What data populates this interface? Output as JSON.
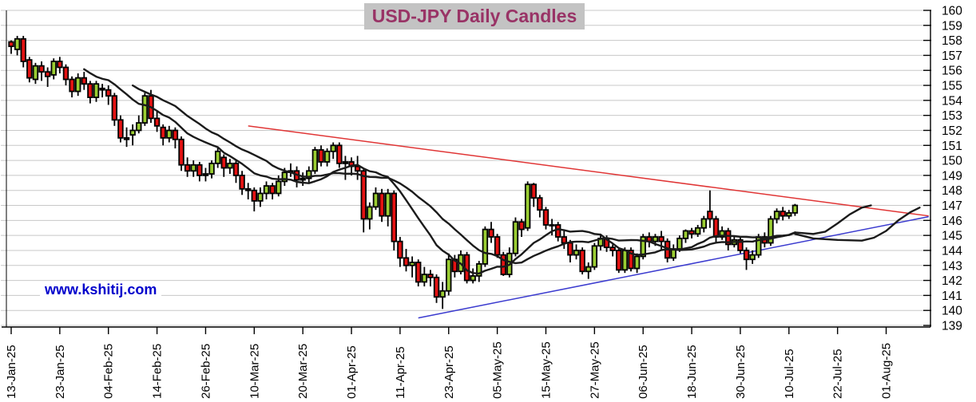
{
  "title": "USD-JPY Daily Candles",
  "watermark": "www.kshitij.com",
  "colors": {
    "title_text": "#993366",
    "title_bg": "#c3c3c3",
    "watermark_text": "#0000cc",
    "candle_up": "#9acd32",
    "candle_down": "#e31212",
    "candle_border": "#000000",
    "grid": "#c8c8c8",
    "axis": "#000000",
    "ma_line": "#1b1b1b",
    "resistance_line": "#e03535",
    "support_line": "#3b3bcf"
  },
  "chart_data": {
    "type": "candlestick",
    "title": "USD-JPY Daily Candles",
    "y_min": 139,
    "y_max": 160,
    "y_step": 1,
    "y_ticks": [
      139,
      140,
      141,
      142,
      143,
      144,
      145,
      146,
      147,
      148,
      149,
      150,
      151,
      152,
      153,
      154,
      155,
      156,
      157,
      158,
      159,
      160
    ],
    "y_axis_side": "right",
    "total_slots": 152,
    "x_ticks": [
      {
        "index": 1,
        "label": "13-Jan-25"
      },
      {
        "index": 9,
        "label": "23-Jan-25"
      },
      {
        "index": 17,
        "label": "04-Feb-25"
      },
      {
        "index": 25,
        "label": "14-Feb-25"
      },
      {
        "index": 33,
        "label": "26-Feb-25"
      },
      {
        "index": 41,
        "label": "10-Mar-25"
      },
      {
        "index": 49,
        "label": "20-Mar-25"
      },
      {
        "index": 57,
        "label": "01-Apr-25"
      },
      {
        "index": 65,
        "label": "11-Apr-25"
      },
      {
        "index": 73,
        "label": "23-Apr-25"
      },
      {
        "index": 81,
        "label": "05-May-25"
      },
      {
        "index": 89,
        "label": "15-May-25"
      },
      {
        "index": 97,
        "label": "27-May-25"
      },
      {
        "index": 105,
        "label": "06-Jun-25"
      },
      {
        "index": 113,
        "label": "18-Jun-25"
      },
      {
        "index": 121,
        "label": "30-Jun-25"
      },
      {
        "index": 129,
        "label": "10-Jul-25"
      },
      {
        "index": 137,
        "label": "22-Jul-25"
      },
      {
        "index": 145,
        "label": "01-Aug-25"
      }
    ],
    "ohlc": [
      [
        157.9,
        158.0,
        157.1,
        157.6
      ],
      [
        157.4,
        158.3,
        157.0,
        158.1
      ],
      [
        158.1,
        158.3,
        156.2,
        156.6
      ],
      [
        156.7,
        156.9,
        155.2,
        155.5
      ],
      [
        155.4,
        156.5,
        155.1,
        156.3
      ],
      [
        156.3,
        156.6,
        155.3,
        155.9
      ],
      [
        155.9,
        156.2,
        154.9,
        155.6
      ],
      [
        155.7,
        156.8,
        155.4,
        156.6
      ],
      [
        156.6,
        156.9,
        155.8,
        156.2
      ],
      [
        156.2,
        156.4,
        155.0,
        155.4
      ],
      [
        155.4,
        155.6,
        154.2,
        154.6
      ],
      [
        154.6,
        155.8,
        154.3,
        155.5
      ],
      [
        155.5,
        155.9,
        154.7,
        155.1
      ],
      [
        155.1,
        155.3,
        153.8,
        154.2
      ],
      [
        154.2,
        155.3,
        153.9,
        155.1
      ],
      [
        154.8,
        155.1,
        154.2,
        154.7
      ],
      [
        154.7,
        155.0,
        153.7,
        154.3
      ],
      [
        154.3,
        154.5,
        152.3,
        152.7
      ],
      [
        152.7,
        153.0,
        151.2,
        151.5
      ],
      [
        151.5,
        152.2,
        150.9,
        151.4
      ],
      [
        151.7,
        152.4,
        151.0,
        152.0
      ],
      [
        152.0,
        153.0,
        151.8,
        152.5
      ],
      [
        152.5,
        154.5,
        152.3,
        154.3
      ],
      [
        154.3,
        154.7,
        152.5,
        152.8
      ],
      [
        152.8,
        153.3,
        151.9,
        152.3
      ],
      [
        152.2,
        152.4,
        151.0,
        151.5
      ],
      [
        151.5,
        152.3,
        151.2,
        152.0
      ],
      [
        152.0,
        152.2,
        150.8,
        151.4
      ],
      [
        151.4,
        151.6,
        149.3,
        149.7
      ],
      [
        149.7,
        150.2,
        148.9,
        149.3
      ],
      [
        149.3,
        150.0,
        148.9,
        149.7
      ],
      [
        149.7,
        149.9,
        148.6,
        149.0
      ],
      [
        149.0,
        149.5,
        148.6,
        149.1
      ],
      [
        149.1,
        150.0,
        148.8,
        149.8
      ],
      [
        149.8,
        150.9,
        149.5,
        150.6
      ],
      [
        150.2,
        150.4,
        148.9,
        149.5
      ],
      [
        149.5,
        150.1,
        149.1,
        149.8
      ],
      [
        149.8,
        150.0,
        148.5,
        149.0
      ],
      [
        149.0,
        149.3,
        147.7,
        148.1
      ],
      [
        148.1,
        148.5,
        147.4,
        148.0
      ],
      [
        148.0,
        148.2,
        146.6,
        147.3
      ],
      [
        147.3,
        148.2,
        146.9,
        147.8
      ],
      [
        147.8,
        148.6,
        147.4,
        148.3
      ],
      [
        148.3,
        148.5,
        147.4,
        147.8
      ],
      [
        147.8,
        149.0,
        147.6,
        148.6
      ],
      [
        148.6,
        149.5,
        148.3,
        149.2
      ],
      [
        149.2,
        149.8,
        148.9,
        149.3
      ],
      [
        149.3,
        149.6,
        148.2,
        148.7
      ],
      [
        148.7,
        149.2,
        148.3,
        148.8
      ],
      [
        148.8,
        149.6,
        148.5,
        149.3
      ],
      [
        149.3,
        150.9,
        149.1,
        150.7
      ],
      [
        150.7,
        151.0,
        149.6,
        149.9
      ],
      [
        149.9,
        150.8,
        149.6,
        150.6
      ],
      [
        150.6,
        151.2,
        150.1,
        151.0
      ],
      [
        151.0,
        151.2,
        149.5,
        149.8
      ],
      [
        149.8,
        150.3,
        148.7,
        149.9
      ],
      [
        149.9,
        150.2,
        149.0,
        149.6
      ],
      [
        149.6,
        150.3,
        148.7,
        149.3
      ],
      [
        149.3,
        149.4,
        145.2,
        146.1
      ],
      [
        146.1,
        147.2,
        145.4,
        146.9
      ],
      [
        146.9,
        148.2,
        146.7,
        147.8
      ],
      [
        147.8,
        148.1,
        145.9,
        146.3
      ],
      [
        146.3,
        148.1,
        145.6,
        147.8
      ],
      [
        147.8,
        148.0,
        144.0,
        144.6
      ],
      [
        144.6,
        144.9,
        142.9,
        143.5
      ],
      [
        143.5,
        144.1,
        142.6,
        143.0
      ],
      [
        143.0,
        143.6,
        142.2,
        143.2
      ],
      [
        143.2,
        143.4,
        141.6,
        141.9
      ],
      [
        141.9,
        142.9,
        141.6,
        142.4
      ],
      [
        142.4,
        142.7,
        141.6,
        142.2
      ],
      [
        142.2,
        142.4,
        140.5,
        140.9
      ],
      [
        140.9,
        141.9,
        140.1,
        141.3
      ],
      [
        141.3,
        143.8,
        141.0,
        143.4
      ],
      [
        143.4,
        143.7,
        142.2,
        142.6
      ],
      [
        142.6,
        144.0,
        142.4,
        143.7
      ],
      [
        143.7,
        143.9,
        141.8,
        142.0
      ],
      [
        142.0,
        142.8,
        141.8,
        142.3
      ],
      [
        142.3,
        143.3,
        141.9,
        143.1
      ],
      [
        143.1,
        145.6,
        142.9,
        145.4
      ],
      [
        145.4,
        145.9,
        144.5,
        144.9
      ],
      [
        144.9,
        145.1,
        143.5,
        143.7
      ],
      [
        143.7,
        143.9,
        142.3,
        142.4
      ],
      [
        142.4,
        144.2,
        142.2,
        143.8
      ],
      [
        143.8,
        146.2,
        143.6,
        145.9
      ],
      [
        145.9,
        146.1,
        144.9,
        145.4
      ],
      [
        145.5,
        148.6,
        145.3,
        148.4
      ],
      [
        148.4,
        148.5,
        146.9,
        147.5
      ],
      [
        147.5,
        147.7,
        146.2,
        146.7
      ],
      [
        146.7,
        146.9,
        145.4,
        145.7
      ],
      [
        145.7,
        146.1,
        145.0,
        145.7
      ],
      [
        145.7,
        145.9,
        144.6,
        144.9
      ],
      [
        144.9,
        145.3,
        144.1,
        144.5
      ],
      [
        144.5,
        144.7,
        143.2,
        143.7
      ],
      [
        143.7,
        144.4,
        143.4,
        144.0
      ],
      [
        144.0,
        144.2,
        142.4,
        142.6
      ],
      [
        142.6,
        143.2,
        142.1,
        142.9
      ],
      [
        142.9,
        144.5,
        142.7,
        144.3
      ],
      [
        144.3,
        145.1,
        144.0,
        144.8
      ],
      [
        144.8,
        145.0,
        143.9,
        144.2
      ],
      [
        144.2,
        144.4,
        143.6,
        144.0
      ],
      [
        144.0,
        144.2,
        142.5,
        142.7
      ],
      [
        142.7,
        144.2,
        142.5,
        144.0
      ],
      [
        144.0,
        144.2,
        142.6,
        142.8
      ],
      [
        142.8,
        143.8,
        142.5,
        143.6
      ],
      [
        143.6,
        145.1,
        143.4,
        144.9
      ],
      [
        144.9,
        145.2,
        144.2,
        144.6
      ],
      [
        144.6,
        145.1,
        144.3,
        144.9
      ],
      [
        144.9,
        145.3,
        144.0,
        144.6
      ],
      [
        144.6,
        144.8,
        143.2,
        143.5
      ],
      [
        143.5,
        144.4,
        143.3,
        144.1
      ],
      [
        144.1,
        145.0,
        143.9,
        144.8
      ],
      [
        144.8,
        145.4,
        144.5,
        145.3
      ],
      [
        145.3,
        145.5,
        144.8,
        145.1
      ],
      [
        145.1,
        145.7,
        144.9,
        145.5
      ],
      [
        145.5,
        146.3,
        145.2,
        146.1
      ],
      [
        146.6,
        148.0,
        145.5,
        146.1
      ],
      [
        146.1,
        146.3,
        144.5,
        144.9
      ],
      [
        144.9,
        145.6,
        144.7,
        145.3
      ],
      [
        145.3,
        145.5,
        144.0,
        144.4
      ],
      [
        144.4,
        145.0,
        144.2,
        144.7
      ],
      [
        144.7,
        144.9,
        143.8,
        144.0
      ],
      [
        144.0,
        144.2,
        142.7,
        143.4
      ],
      [
        143.4,
        144.0,
        143.1,
        143.7
      ],
      [
        143.7,
        145.1,
        143.5,
        144.9
      ],
      [
        144.9,
        145.2,
        144.2,
        144.5
      ],
      [
        144.5,
        146.3,
        144.3,
        146.1
      ],
      [
        146.1,
        146.8,
        145.8,
        146.6
      ],
      [
        146.6,
        146.9,
        146.0,
        146.3
      ],
      [
        146.3,
        146.7,
        146.1,
        146.5
      ],
      [
        146.5,
        147.1,
        146.3,
        147.0
      ]
    ],
    "ma_windows": [
      13,
      21
    ],
    "projection_lines": [
      {
        "name": "ma-fast-projection",
        "points": [
          [
            130,
            145.2
          ],
          [
            133,
            145.1
          ],
          [
            135,
            145.25
          ],
          [
            137,
            145.8
          ],
          [
            139,
            146.4
          ],
          [
            141,
            146.85
          ],
          [
            142.5,
            147.0
          ]
        ]
      },
      {
        "name": "ma-slow-projection",
        "points": [
          [
            130,
            145.1
          ],
          [
            133,
            144.8
          ],
          [
            137,
            144.7
          ],
          [
            141,
            144.65
          ],
          [
            143,
            144.85
          ],
          [
            145,
            145.3
          ],
          [
            147,
            146.0
          ],
          [
            149,
            146.55
          ],
          [
            150.5,
            146.85
          ]
        ]
      }
    ],
    "trendlines": [
      {
        "name": "resistance",
        "color": "#e03535",
        "points": [
          [
            40,
            152.3
          ],
          [
            152,
            146.3
          ]
        ]
      },
      {
        "name": "support",
        "color": "#3b3bcf",
        "points": [
          [
            68,
            139.5
          ],
          [
            152,
            146.25
          ]
        ]
      }
    ],
    "legend": "none",
    "grid": "horizontal-only"
  }
}
